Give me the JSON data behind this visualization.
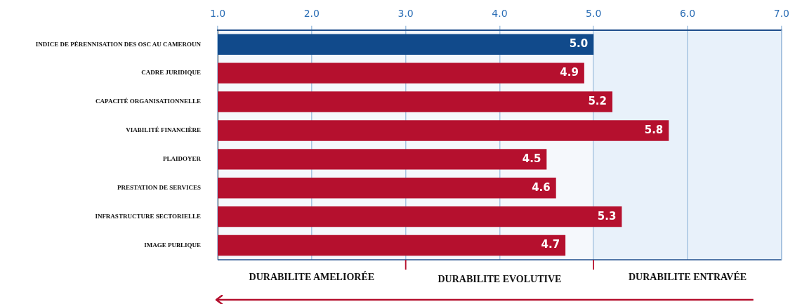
{
  "chart_data": {
    "type": "bar",
    "orientation": "horizontal",
    "categories": [
      "INDICE DE PÉRENNISATION DES OSC AU CAMEROUN",
      "CADRE JURIDIQUE",
      "CAPACITÉ ORGANISATIONNELLE",
      "VIABILITÉ FINANCIÈRE",
      "PLAIDOYER",
      "PRESTATION DE SERVICES",
      "INFRASTRUCTURE SECTORIELLE",
      "IMAGE PUBLIQUE"
    ],
    "values": [
      5.0,
      4.9,
      5.2,
      5.8,
      4.5,
      4.6,
      5.3,
      4.7
    ],
    "colors": [
      "#114a8b",
      "#b5102e",
      "#b5102e",
      "#b5102e",
      "#b5102e",
      "#b5102e",
      "#b5102e",
      "#b5102e"
    ],
    "value_labels": [
      "5.0",
      "4.9",
      "5.2",
      "5.8",
      "4.5",
      "4.6",
      "5.3",
      "4.7"
    ],
    "xlim": [
      1,
      7
    ],
    "xticks": [
      {
        "value": 1,
        "label": "1.0"
      },
      {
        "value": 2,
        "label": "2.0"
      },
      {
        "value": 3,
        "label": "3.0"
      },
      {
        "value": 4,
        "label": "4.0"
      },
      {
        "value": 5,
        "label": "5.0"
      },
      {
        "value": 6,
        "label": "6.0"
      },
      {
        "value": 7,
        "label": "7.0"
      }
    ],
    "grid": "x",
    "legend": false,
    "bands": [
      {
        "axis": "x",
        "from": 1,
        "to": 3,
        "label": "DURABILITE AMELIORÉE",
        "color": "#f5f8fc"
      },
      {
        "axis": "x",
        "from": 3,
        "to": 5,
        "label": "DURABILITE EVOLUTIVE",
        "color": "#f5f8fc"
      },
      {
        "axis": "x",
        "from": 5,
        "to": 7,
        "label": "DURABILITE ENTRAVÉE",
        "color": "#e8f1fa"
      }
    ]
  }
}
